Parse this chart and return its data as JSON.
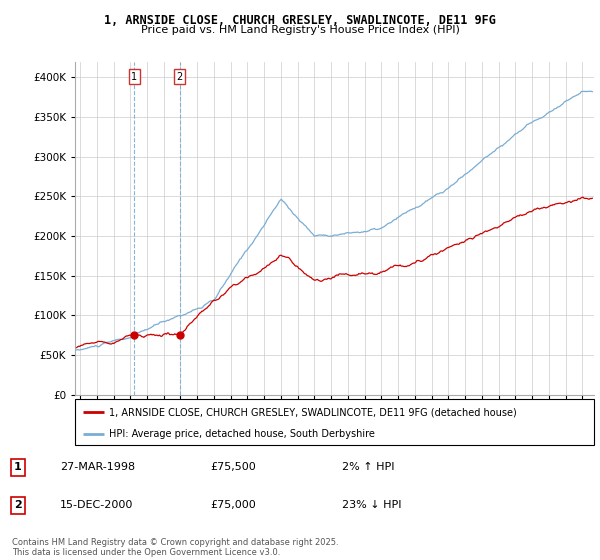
{
  "title": "1, ARNSIDE CLOSE, CHURCH GRESLEY, SWADLINCOTE, DE11 9FG",
  "subtitle": "Price paid vs. HM Land Registry's House Price Index (HPI)",
  "legend_label_red": "1, ARNSIDE CLOSE, CHURCH GRESLEY, SWADLINCOTE, DE11 9FG (detached house)",
  "legend_label_blue": "HPI: Average price, detached house, South Derbyshire",
  "sale1_date": "27-MAR-1998",
  "sale1_price": "£75,500",
  "sale1_hpi": "2% ↑ HPI",
  "sale2_date": "15-DEC-2000",
  "sale2_price": "£75,000",
  "sale2_hpi": "23% ↓ HPI",
  "footer": "Contains HM Land Registry data © Crown copyright and database right 2025.\nThis data is licensed under the Open Government Licence v3.0.",
  "ylim": [
    0,
    420000
  ],
  "yticks": [
    0,
    50000,
    100000,
    150000,
    200000,
    250000,
    300000,
    350000,
    400000
  ],
  "ytick_labels": [
    "£0",
    "£50K",
    "£100K",
    "£150K",
    "£200K",
    "£250K",
    "£300K",
    "£350K",
    "£400K"
  ],
  "red_color": "#cc0000",
  "blue_color": "#7aadd4",
  "sale1_x": 1998.23,
  "sale1_y": 75500,
  "sale2_x": 2000.96,
  "sale2_y": 75000,
  "xlim_left": 1994.7,
  "xlim_right": 2025.7,
  "x_ticks_start": 1995,
  "x_ticks_end": 2026
}
